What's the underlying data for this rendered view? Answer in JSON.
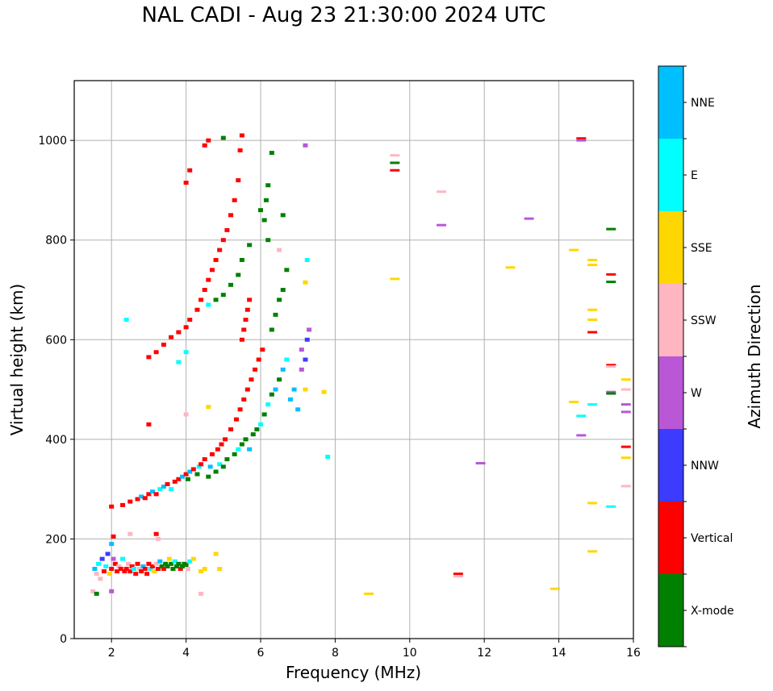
{
  "chart_data": {
    "type": "scatter",
    "title": "NAL CADI - Aug 23 21:30:00 2024 UTC",
    "xlabel": "Frequency (MHz)",
    "ylabel": "Virtual height (km)",
    "xlim": [
      1,
      16
    ],
    "ylim": [
      0,
      1120
    ],
    "xticks": [
      2,
      4,
      6,
      8,
      10,
      12,
      14,
      16
    ],
    "yticks": [
      0,
      200,
      400,
      600,
      800,
      1000
    ],
    "grid": true,
    "colorbar": {
      "label": "Azimuth Direction",
      "position": "right",
      "categories": [
        {
          "name": "X-mode",
          "color": "#008000"
        },
        {
          "name": "Vertical",
          "color": "#ff0000"
        },
        {
          "name": "NNW",
          "color": "#3c3cff"
        },
        {
          "name": "W",
          "color": "#b957d6"
        },
        {
          "name": "SSW",
          "color": "#ffb6c1"
        },
        {
          "name": "SSE",
          "color": "#ffd700"
        },
        {
          "name": "E",
          "color": "#00ffff"
        },
        {
          "name": "NNE",
          "color": "#00bfff"
        }
      ]
    },
    "series_fields": [
      "frequency_mhz",
      "height_km",
      "category_index"
    ],
    "points": [
      [
        1.55,
        140,
        7
      ],
      [
        1.6,
        130,
        4
      ],
      [
        1.65,
        150,
        6
      ],
      [
        1.7,
        120,
        4
      ],
      [
        1.75,
        160,
        2
      ],
      [
        1.8,
        135,
        1
      ],
      [
        1.85,
        145,
        6
      ],
      [
        1.9,
        170,
        2
      ],
      [
        1.95,
        130,
        5
      ],
      [
        2.0,
        140,
        1
      ],
      [
        2.0,
        190,
        7
      ],
      [
        2.05,
        205,
        1
      ],
      [
        2.05,
        160,
        3
      ],
      [
        2.1,
        150,
        1
      ],
      [
        2.15,
        135,
        1
      ],
      [
        2.2,
        145,
        4
      ],
      [
        2.25,
        140,
        1
      ],
      [
        2.3,
        160,
        6
      ],
      [
        2.35,
        135,
        1
      ],
      [
        2.4,
        140,
        1
      ],
      [
        2.45,
        150,
        4
      ],
      [
        2.5,
        135,
        1
      ],
      [
        2.55,
        145,
        1
      ],
      [
        2.6,
        140,
        6
      ],
      [
        2.65,
        130,
        1
      ],
      [
        2.7,
        150,
        1
      ],
      [
        2.75,
        140,
        4
      ],
      [
        2.8,
        135,
        1
      ],
      [
        2.85,
        145,
        7
      ],
      [
        2.9,
        140,
        1
      ],
      [
        2.95,
        130,
        1
      ],
      [
        3.0,
        150,
        1
      ],
      [
        3.05,
        140,
        6
      ],
      [
        3.1,
        145,
        1
      ],
      [
        3.15,
        135,
        5
      ],
      [
        3.2,
        150,
        4
      ],
      [
        3.25,
        140,
        1
      ],
      [
        3.3,
        155,
        7
      ],
      [
        3.35,
        145,
        0
      ],
      [
        3.4,
        140,
        1
      ],
      [
        3.45,
        150,
        0
      ],
      [
        3.5,
        145,
        0
      ],
      [
        3.55,
        160,
        5
      ],
      [
        3.6,
        150,
        0
      ],
      [
        3.65,
        140,
        0
      ],
      [
        3.7,
        155,
        6
      ],
      [
        3.75,
        145,
        0
      ],
      [
        3.8,
        150,
        0
      ],
      [
        3.85,
        140,
        1
      ],
      [
        3.9,
        145,
        0
      ],
      [
        3.95,
        150,
        0
      ],
      [
        4.0,
        148,
        0
      ],
      [
        4.05,
        140,
        4
      ],
      [
        4.1,
        155,
        6
      ],
      [
        4.2,
        160,
        5
      ],
      [
        4.4,
        135,
        5
      ],
      [
        4.5,
        140,
        5
      ],
      [
        4.8,
        170,
        5
      ],
      [
        4.9,
        140,
        5
      ],
      [
        1.5,
        95,
        4
      ],
      [
        1.6,
        90,
        0
      ],
      [
        2.0,
        95,
        3
      ],
      [
        2.5,
        210,
        4
      ],
      [
        3.2,
        210,
        1
      ],
      [
        3.25,
        200,
        4
      ],
      [
        2.0,
        265,
        1
      ],
      [
        2.3,
        268,
        1
      ],
      [
        2.5,
        275,
        1
      ],
      [
        2.7,
        280,
        1
      ],
      [
        2.8,
        285,
        7
      ],
      [
        2.9,
        282,
        1
      ],
      [
        3.0,
        290,
        1
      ],
      [
        3.1,
        295,
        7
      ],
      [
        3.2,
        290,
        1
      ],
      [
        3.3,
        300,
        6
      ],
      [
        3.4,
        305,
        7
      ],
      [
        3.5,
        310,
        1
      ],
      [
        3.6,
        300,
        6
      ],
      [
        3.7,
        315,
        1
      ],
      [
        3.8,
        320,
        1
      ],
      [
        3.9,
        325,
        7
      ],
      [
        4.0,
        330,
        1
      ],
      [
        4.05,
        320,
        0
      ],
      [
        4.1,
        335,
        7
      ],
      [
        4.2,
        340,
        1
      ],
      [
        4.3,
        330,
        0
      ],
      [
        4.35,
        345,
        6
      ],
      [
        4.4,
        350,
        1
      ],
      [
        4.5,
        360,
        1
      ],
      [
        4.6,
        325,
        0
      ],
      [
        4.65,
        345,
        7
      ],
      [
        4.7,
        370,
        1
      ],
      [
        4.8,
        335,
        0
      ],
      [
        4.85,
        380,
        1
      ],
      [
        4.9,
        350,
        6
      ],
      [
        4.95,
        390,
        1
      ],
      [
        5.0,
        345,
        0
      ],
      [
        5.05,
        400,
        1
      ],
      [
        5.1,
        360,
        0
      ],
      [
        5.2,
        420,
        1
      ],
      [
        5.3,
        370,
        0
      ],
      [
        5.35,
        440,
        1
      ],
      [
        5.4,
        380,
        6
      ],
      [
        5.45,
        460,
        1
      ],
      [
        5.5,
        390,
        0
      ],
      [
        5.55,
        480,
        1
      ],
      [
        5.6,
        400,
        0
      ],
      [
        5.65,
        500,
        1
      ],
      [
        5.7,
        380,
        7
      ],
      [
        5.75,
        520,
        1
      ],
      [
        5.8,
        410,
        0
      ],
      [
        5.85,
        540,
        1
      ],
      [
        5.9,
        420,
        0
      ],
      [
        5.95,
        560,
        1
      ],
      [
        6.0,
        430,
        6
      ],
      [
        6.05,
        580,
        1
      ],
      [
        5.5,
        600,
        1
      ],
      [
        5.55,
        620,
        1
      ],
      [
        5.6,
        640,
        1
      ],
      [
        5.65,
        660,
        1
      ],
      [
        5.7,
        680,
        1
      ],
      [
        6.1,
        450,
        0
      ],
      [
        6.2,
        470,
        6
      ],
      [
        6.3,
        490,
        0
      ],
      [
        6.4,
        500,
        7
      ],
      [
        6.5,
        520,
        0
      ],
      [
        6.6,
        540,
        7
      ],
      [
        6.7,
        560,
        6
      ],
      [
        6.8,
        480,
        7
      ],
      [
        6.9,
        500,
        7
      ],
      [
        7.0,
        460,
        7
      ],
      [
        7.1,
        540,
        3
      ],
      [
        7.2,
        560,
        2
      ],
      [
        7.25,
        600,
        2
      ],
      [
        7.3,
        620,
        3
      ],
      [
        7.1,
        580,
        3
      ],
      [
        7.2,
        500,
        5
      ],
      [
        7.7,
        495,
        5
      ],
      [
        6.3,
        620,
        0
      ],
      [
        6.4,
        650,
        0
      ],
      [
        6.5,
        680,
        0
      ],
      [
        6.6,
        700,
        0
      ],
      [
        6.7,
        740,
        0
      ],
      [
        6.5,
        780,
        4
      ],
      [
        6.2,
        800,
        0
      ],
      [
        6.1,
        840,
        0
      ],
      [
        6.0,
        860,
        0
      ],
      [
        6.15,
        880,
        0
      ],
      [
        6.2,
        910,
        0
      ],
      [
        6.3,
        975,
        0
      ],
      [
        6.6,
        850,
        0
      ],
      [
        7.2,
        990,
        3
      ],
      [
        7.25,
        760,
        6
      ],
      [
        7.2,
        715,
        5
      ],
      [
        3.0,
        565,
        1
      ],
      [
        3.2,
        575,
        1
      ],
      [
        3.4,
        590,
        1
      ],
      [
        3.6,
        605,
        1
      ],
      [
        3.8,
        615,
        1
      ],
      [
        4.0,
        625,
        1
      ],
      [
        4.1,
        640,
        1
      ],
      [
        4.3,
        660,
        1
      ],
      [
        4.4,
        680,
        1
      ],
      [
        4.5,
        700,
        1
      ],
      [
        4.6,
        720,
        1
      ],
      [
        4.7,
        740,
        1
      ],
      [
        4.8,
        760,
        1
      ],
      [
        4.9,
        780,
        1
      ],
      [
        5.0,
        800,
        1
      ],
      [
        5.1,
        820,
        1
      ],
      [
        5.2,
        850,
        1
      ],
      [
        5.3,
        880,
        1
      ],
      [
        5.4,
        920,
        1
      ],
      [
        5.45,
        980,
        1
      ],
      [
        5.5,
        1010,
        1
      ],
      [
        4.5,
        990,
        1
      ],
      [
        4.6,
        1000,
        1
      ],
      [
        4.0,
        915,
        1
      ],
      [
        4.1,
        940,
        1
      ],
      [
        5.0,
        1005,
        0
      ],
      [
        4.6,
        670,
        6
      ],
      [
        4.8,
        680,
        0
      ],
      [
        5.0,
        690,
        0
      ],
      [
        5.2,
        710,
        0
      ],
      [
        5.4,
        730,
        0
      ],
      [
        5.5,
        760,
        0
      ],
      [
        5.7,
        790,
        0
      ],
      [
        2.4,
        640,
        6
      ],
      [
        4.0,
        575,
        6
      ],
      [
        3.8,
        555,
        6
      ],
      [
        3.0,
        430,
        1
      ],
      [
        4.0,
        450,
        4
      ],
      [
        4.6,
        465,
        5
      ],
      [
        4.4,
        90,
        4
      ],
      [
        7.8,
        365,
        6
      ],
      [
        8.9,
        90,
        5
      ],
      [
        9.6,
        970,
        4
      ],
      [
        9.6,
        955,
        0
      ],
      [
        9.6,
        940,
        1
      ],
      [
        9.6,
        722,
        5
      ],
      [
        10.85,
        897,
        4
      ],
      [
        10.85,
        830,
        3
      ],
      [
        11.3,
        130,
        1
      ],
      [
        11.3,
        125,
        4
      ],
      [
        11.9,
        352,
        3
      ],
      [
        12.7,
        745,
        5
      ],
      [
        13.2,
        843,
        3
      ],
      [
        13.9,
        100,
        5
      ],
      [
        14.6,
        1004,
        1
      ],
      [
        14.6,
        1000,
        3
      ],
      [
        14.4,
        780,
        5
      ],
      [
        14.9,
        760,
        5
      ],
      [
        14.9,
        750,
        5
      ],
      [
        14.9,
        660,
        5
      ],
      [
        14.9,
        640,
        5
      ],
      [
        14.9,
        615,
        1
      ],
      [
        14.4,
        475,
        5
      ],
      [
        14.9,
        470,
        6
      ],
      [
        14.6,
        447,
        6
      ],
      [
        14.6,
        408,
        3
      ],
      [
        14.9,
        272,
        5
      ],
      [
        14.9,
        175,
        5
      ],
      [
        15.4,
        822,
        0
      ],
      [
        15.4,
        731,
        1
      ],
      [
        15.4,
        716,
        0
      ],
      [
        15.4,
        549,
        1
      ],
      [
        15.4,
        546,
        4
      ],
      [
        15.4,
        495,
        3
      ],
      [
        15.4,
        492,
        0
      ],
      [
        15.8,
        520,
        5
      ],
      [
        15.8,
        500,
        4
      ],
      [
        15.8,
        470,
        3
      ],
      [
        15.8,
        455,
        3
      ],
      [
        15.8,
        385,
        1
      ],
      [
        15.8,
        363,
        5
      ],
      [
        15.8,
        306,
        4
      ],
      [
        15.4,
        265,
        6
      ]
    ]
  }
}
